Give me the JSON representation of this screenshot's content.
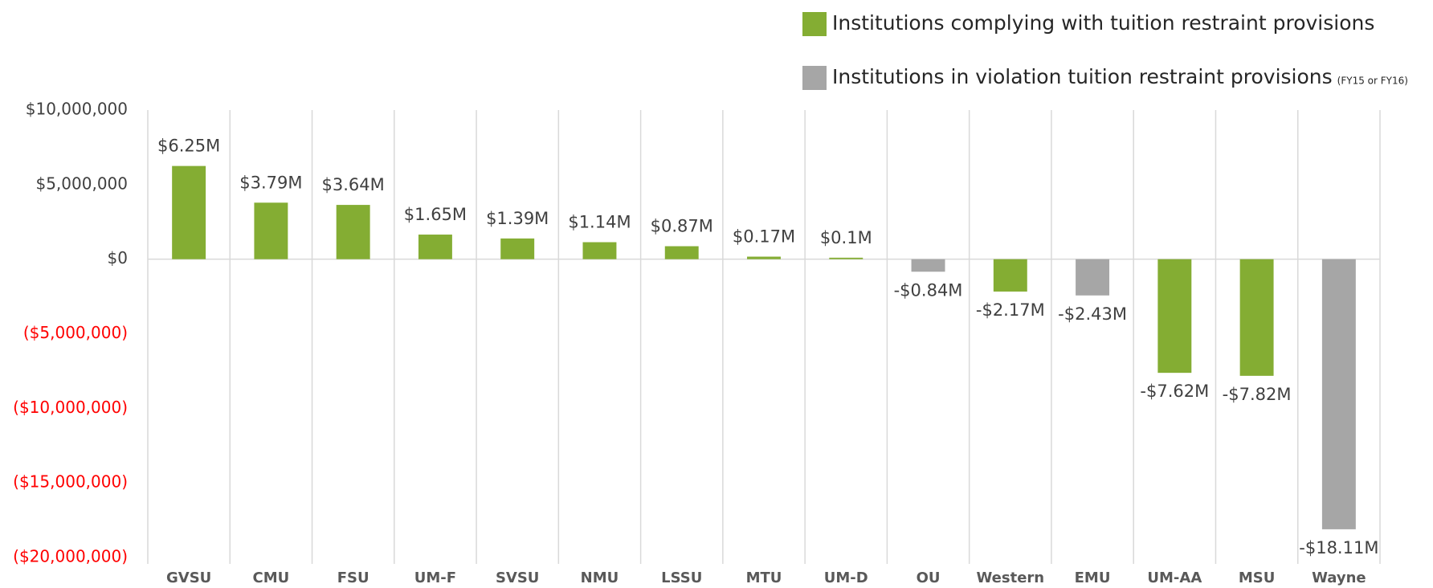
{
  "chart_data": {
    "type": "bar",
    "categories": [
      "GVSU",
      "CMU",
      "FSU",
      "UM-F",
      "SVSU",
      "NMU",
      "LSSU",
      "MTU",
      "UM-D",
      "OU",
      "Western",
      "EMU",
      "UM-AA",
      "MSU",
      "Wayne"
    ],
    "series": [
      {
        "name": "Institutions complying with tuition restraint provisions",
        "color": "#84ad33",
        "values": [
          6250000,
          3790000,
          3640000,
          1650000,
          1390000,
          1140000,
          870000,
          170000,
          100000,
          null,
          -2170000,
          null,
          -7620000,
          -7820000,
          null
        ],
        "value_labels": [
          "$6.25M",
          "$3.79M",
          "$3.64M",
          "$1.65M",
          "$1.39M",
          "$1.14M",
          "$0.87M",
          "$0.17M",
          "$0.1M",
          null,
          "-$2.17M",
          null,
          "-$7.62M",
          "-$7.82M",
          null
        ]
      },
      {
        "name": "Institutions in violation tuition restraint provisions",
        "note": "(FY15 or FY16)",
        "color": "#a6a6a6",
        "values": [
          null,
          null,
          null,
          null,
          null,
          null,
          null,
          null,
          null,
          -840000,
          null,
          -2430000,
          null,
          null,
          -18110000
        ],
        "value_labels": [
          null,
          null,
          null,
          null,
          null,
          null,
          null,
          null,
          null,
          "-$0.84M",
          null,
          "-$2.43M",
          null,
          null,
          "-$18.11M"
        ]
      }
    ],
    "ylim": [
      -20000000,
      10000000
    ],
    "yticks": [
      {
        "value": 10000000,
        "label": "$10,000,000"
      },
      {
        "value": 5000000,
        "label": "$5,000,000"
      },
      {
        "value": 0,
        "label": "$0"
      },
      {
        "value": -5000000,
        "label": "($5,000,000)"
      },
      {
        "value": -10000000,
        "label": "($10,000,000)"
      },
      {
        "value": -15000000,
        "label": "($15,000,000)"
      },
      {
        "value": -20000000,
        "label": "($20,000,000)"
      }
    ],
    "negative_tick_color": "#ff0000",
    "grid": false,
    "legend": "top-right"
  }
}
